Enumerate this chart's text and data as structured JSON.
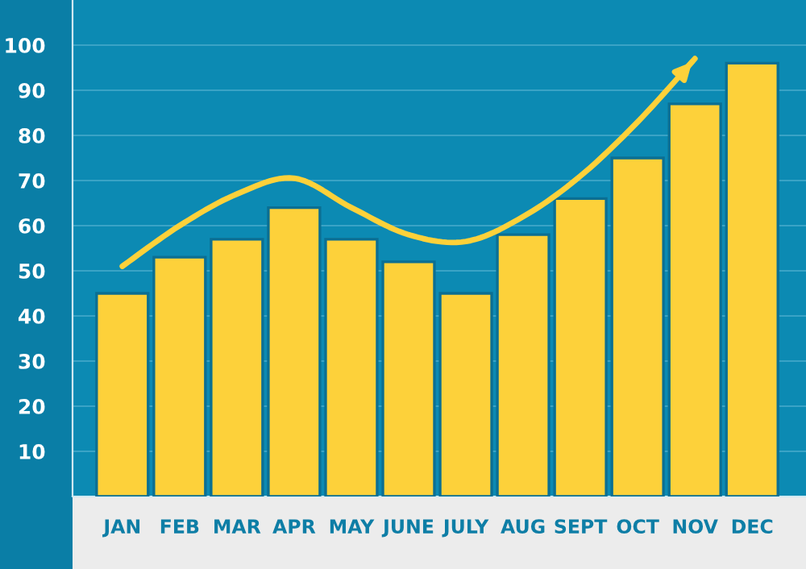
{
  "chart_data": {
    "type": "bar",
    "categories": [
      "JAN",
      "FEB",
      "MAR",
      "APR",
      "MAY",
      "JUNE",
      "JULY",
      "AUG",
      "SEPT",
      "OCT",
      "NOV",
      "DEC"
    ],
    "series": [
      {
        "color": "#fdd13a",
        "values": [
          45,
          53,
          57,
          64,
          57,
          52,
          45,
          58,
          66,
          75,
          87,
          96
        ]
      },
      {
        "type": "line",
        "color": "#fdd13a",
        "values": [
          51,
          60,
          67,
          70.5,
          64,
          58,
          56.5,
          62,
          71,
          83,
          97,
          null
        ]
      }
    ],
    "ylim": [
      0,
      110
    ],
    "yticks": [
      10,
      20,
      30,
      40,
      50,
      60,
      70,
      80,
      90,
      100
    ],
    "grid": "y"
  }
}
